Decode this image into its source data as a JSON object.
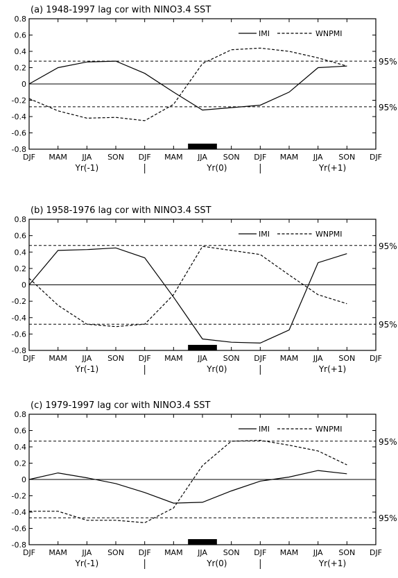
{
  "chart_data": [
    {
      "type": "line",
      "title": "(a) 1948-1997 lag cor with NINO3.4 SST",
      "x_tick_labels": [
        "DJF",
        "MAM",
        "JJA",
        "SON",
        "DJF",
        "MAM",
        "JJA",
        "SON",
        "DJF",
        "MAM",
        "JJA",
        "SON",
        "DJF"
      ],
      "year_labels": [
        "Yr(-1)",
        "Yr(0)",
        "Yr(+1)"
      ],
      "ylim": [
        -0.8,
        0.8
      ],
      "yticks": [
        "0.8",
        "0.6",
        "0.4",
        "0.2",
        "0",
        "-0.2",
        "-0.4",
        "-0.6",
        "-0.8"
      ],
      "x": [
        0,
        1,
        2,
        3,
        4,
        5,
        6,
        7,
        8,
        9,
        10,
        11
      ],
      "series": [
        {
          "name": "IMI",
          "style": "solid",
          "values": [
            0.0,
            0.2,
            0.27,
            0.28,
            0.13,
            -0.1,
            -0.32,
            -0.29,
            -0.26,
            -0.1,
            0.2,
            0.22
          ]
        },
        {
          "name": "WNPMI",
          "style": "dashed",
          "values": [
            -0.18,
            -0.33,
            -0.42,
            -0.41,
            -0.45,
            -0.25,
            0.25,
            0.42,
            0.44,
            0.4,
            0.32,
            0.22
          ]
        }
      ],
      "significance": {
        "label": "95%",
        "upper": 0.28,
        "lower": -0.28
      },
      "bar": {
        "x_from": 5.5,
        "x_to": 6.5
      }
    },
    {
      "type": "line",
      "title": "(b) 1958-1976 lag cor with NINO3.4 SST",
      "x_tick_labels": [
        "DJF",
        "MAM",
        "JJA",
        "SON",
        "DJF",
        "MAM",
        "JJA",
        "SON",
        "DJF",
        "MAM",
        "JJA",
        "SON",
        "DJF"
      ],
      "year_labels": [
        "Yr(-1)",
        "Yr(0)",
        "Yr(+1)"
      ],
      "ylim": [
        -0.8,
        0.8
      ],
      "yticks": [
        "0.8",
        "0.6",
        "0.4",
        "0.2",
        "0",
        "-0.2",
        "-0.4",
        "-0.6",
        "-0.8"
      ],
      "x": [
        0,
        1,
        2,
        3,
        4,
        5,
        6,
        7,
        8,
        9,
        10,
        11
      ],
      "series": [
        {
          "name": "IMI",
          "style": "solid",
          "values": [
            0.0,
            0.42,
            0.43,
            0.45,
            0.33,
            -0.15,
            -0.66,
            -0.7,
            -0.71,
            -0.55,
            0.27,
            0.38
          ]
        },
        {
          "name": "WNPMI",
          "style": "dashed",
          "values": [
            0.08,
            -0.25,
            -0.48,
            -0.51,
            -0.48,
            -0.12,
            0.47,
            0.42,
            0.37,
            0.12,
            -0.12,
            -0.23
          ]
        }
      ],
      "significance": {
        "label": "95%",
        "upper": 0.48,
        "lower": -0.48
      },
      "bar": {
        "x_from": 5.5,
        "x_to": 6.5
      }
    },
    {
      "type": "line",
      "title": "(c) 1979-1997 lag cor with NINO3.4 SST",
      "x_tick_labels": [
        "DJF",
        "MAM",
        "JJA",
        "SON",
        "DJF",
        "MAM",
        "JJA",
        "SON",
        "DJF",
        "MAM",
        "JJA",
        "SON",
        "DJF"
      ],
      "year_labels": [
        "Yr(-1)",
        "Yr(0)",
        "Yr(+1)"
      ],
      "ylim": [
        -0.8,
        0.8
      ],
      "yticks": [
        "0.8",
        "0.6",
        "0.4",
        "0.2",
        "0",
        "-0.2",
        "-0.4",
        "-0.6",
        "-0.8"
      ],
      "x": [
        0,
        1,
        2,
        3,
        4,
        5,
        6,
        7,
        8,
        9,
        10,
        11
      ],
      "series": [
        {
          "name": "IMI",
          "style": "solid",
          "values": [
            0.0,
            0.08,
            0.02,
            -0.05,
            -0.16,
            -0.29,
            -0.28,
            -0.14,
            -0.02,
            0.03,
            0.11,
            0.07
          ]
        },
        {
          "name": "WNPMI",
          "style": "dashed",
          "values": [
            -0.39,
            -0.39,
            -0.5,
            -0.5,
            -0.53,
            -0.35,
            0.17,
            0.47,
            0.48,
            0.42,
            0.35,
            0.18
          ]
        }
      ],
      "significance": {
        "label": "95%",
        "upper": 0.47,
        "lower": -0.47
      },
      "bar": {
        "x_from": 5.5,
        "x_to": 6.5
      }
    }
  ]
}
